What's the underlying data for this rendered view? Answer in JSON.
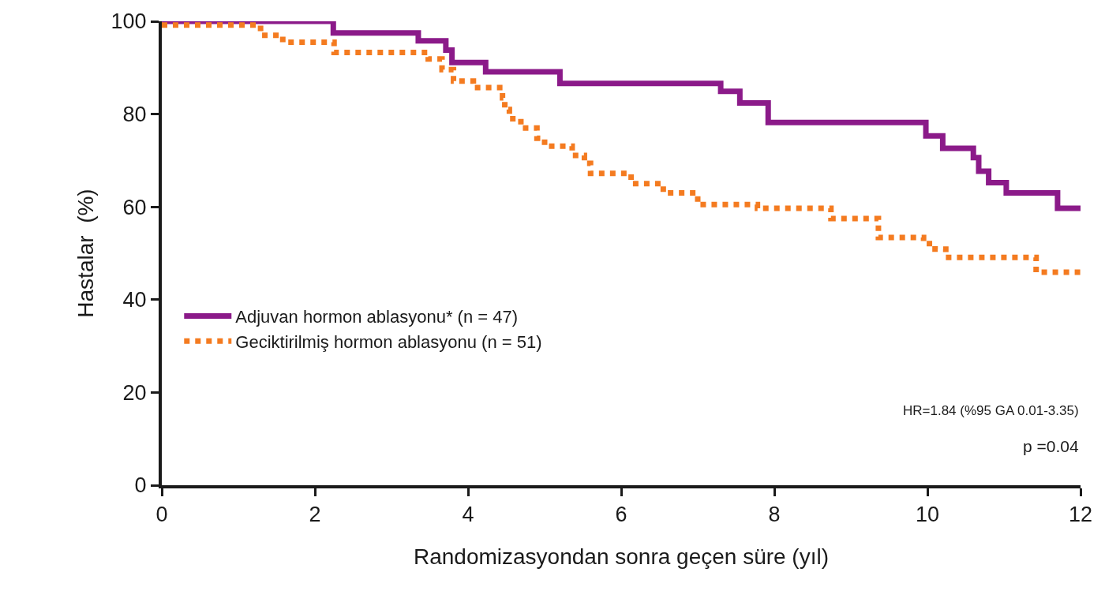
{
  "chart_data": {
    "type": "step",
    "xlabel": "Randomizasyondan sonra geçen süre (yıl)",
    "ylabel": "Hastalar  (%)",
    "xlim": [
      0,
      12
    ],
    "ylim": [
      0,
      100
    ],
    "xticks": [
      0,
      2,
      4,
      6,
      8,
      10,
      12
    ],
    "yticks": [
      0,
      20,
      40,
      60,
      80,
      100
    ],
    "legend": "left",
    "series": [
      {
        "name": "Adjuvan hormon ablasyonu* (n = 47)",
        "color": "#8b1a89",
        "line_style": "solid",
        "x": [
          0,
          2.24,
          3.35,
          3.71,
          3.79,
          4.23,
          5.2,
          7.3,
          7.55,
          7.92,
          9.98,
          10.2,
          10.6,
          10.67,
          10.8,
          11.03,
          11.7,
          12
        ],
        "values": [
          100,
          97.5,
          95.8,
          93.8,
          91.1,
          89.1,
          86.6,
          84.9,
          82.4,
          78.2,
          75.3,
          72.6,
          70.6,
          67.7,
          65.2,
          63.0,
          59.7,
          59.7
        ]
      },
      {
        "name": "Geciktirilmiş hormon ablasyonu (n = 51)",
        "color": "#f47b20",
        "line_style": "dotted",
        "x": [
          0,
          1.29,
          1.58,
          2.25,
          3.48,
          3.66,
          3.81,
          4.07,
          4.45,
          4.48,
          4.54,
          4.69,
          4.9,
          5.0,
          5.36,
          5.52,
          5.6,
          6.13,
          6.55,
          7.0,
          7.78,
          8.74,
          9.36,
          9.95,
          10.1,
          10.24,
          11.42,
          12
        ],
        "values": [
          99.2,
          97.0,
          95.5,
          93.3,
          91.9,
          89.6,
          87.1,
          85.7,
          83.5,
          81.0,
          79.0,
          77.0,
          74.8,
          73.1,
          71.1,
          69.4,
          67.2,
          65.0,
          63.0,
          60.5,
          59.7,
          57.5,
          53.4,
          52.1,
          50.9,
          49.1,
          45.9,
          45.9
        ]
      }
    ],
    "annotations": [
      "HR=1.84 (%95 GA 0.01-3.35)",
      "p =0.04"
    ]
  }
}
